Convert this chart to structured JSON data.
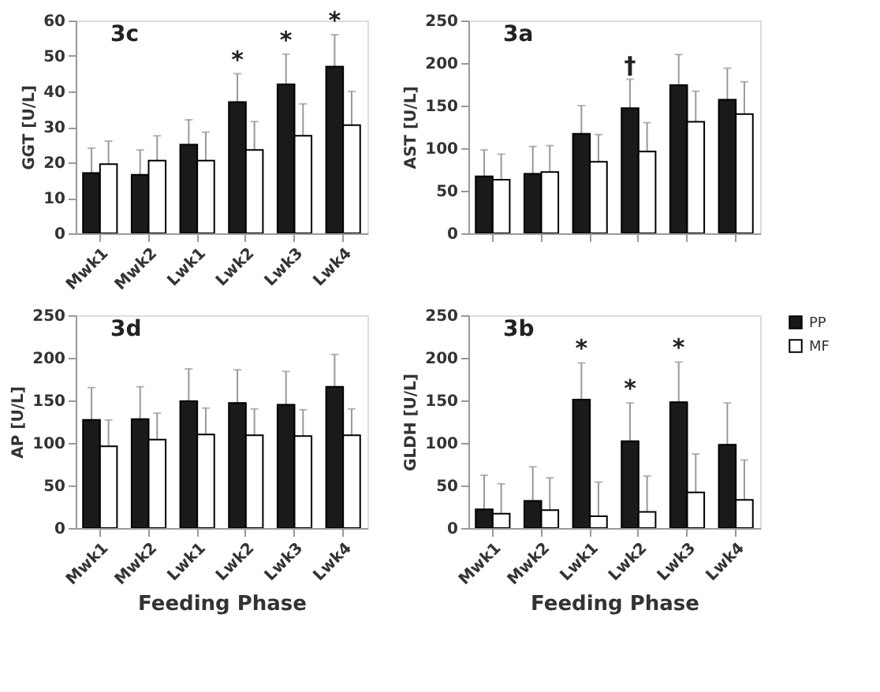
{
  "chart_data": [
    {
      "type": "bar",
      "title": "3c",
      "ylabel": "GGT [U/L]",
      "categories": [
        "Mwk1",
        "Mwk2",
        "Lwk1",
        "Lwk2",
        "Lwk3",
        "Lwk4"
      ],
      "ylim": [
        0,
        60
      ],
      "yticks": [
        0,
        10,
        20,
        30,
        40,
        50,
        60
      ],
      "grid": false,
      "series": [
        {
          "color": "#1a1a1a",
          "values": [
            17,
            16.5,
            25,
            37,
            42,
            47
          ],
          "errors": [
            [
              17,
              24
            ],
            [
              16.5,
              23.5
            ],
            [
              25,
              32
            ],
            [
              37,
              45
            ],
            [
              42,
              50.5
            ],
            [
              47,
              56
            ]
          ]
        },
        {
          "color": "#ffffff",
          "values": [
            19.5,
            20.5,
            20.5,
            23.5,
            27.5,
            30.5
          ],
          "errors": [
            [
              19.5,
              26
            ],
            [
              20.5,
              27.5
            ],
            [
              20.5,
              28.5
            ],
            [
              23.5,
              31.5
            ],
            [
              27.5,
              36.5
            ],
            [
              30.5,
              40
            ]
          ]
        }
      ],
      "annotations": [
        {
          "text": "*",
          "x": "Lwk2",
          "y": 45
        },
        {
          "text": "*",
          "x": "Lwk3",
          "y": 50.5
        },
        {
          "text": "*",
          "x": "Lwk4",
          "y": 56
        }
      ]
    },
    {
      "type": "bar",
      "title": "3a",
      "ylabel": "AST [U/L]",
      "categories": [
        "Mwk1",
        "Mwk2",
        "Lwk1",
        "Lwk2",
        "Lwk3",
        "Lwk4"
      ],
      "ylim": [
        0,
        250
      ],
      "yticks": [
        0,
        50,
        100,
        150,
        200,
        250
      ],
      "grid": false,
      "tick_labels": "y",
      "series": [
        {
          "color": "#1a1a1a",
          "values": [
            67,
            70,
            117,
            147,
            174,
            157
          ],
          "errors": [
            [
              67,
              98
            ],
            [
              70,
              102
            ],
            [
              117,
              150
            ],
            [
              147,
              181
            ],
            [
              174,
              210
            ],
            [
              157,
              194
            ]
          ]
        },
        {
          "color": "#ffffff",
          "values": [
            63,
            72,
            84,
            96,
            131,
            140
          ],
          "errors": [
            [
              63,
              93
            ],
            [
              72,
              103
            ],
            [
              84,
              116
            ],
            [
              96,
              130
            ],
            [
              131,
              167
            ],
            [
              140,
              178
            ]
          ]
        }
      ],
      "annotations": [
        {
          "text": "†",
          "x": "Lwk2",
          "y": 181
        }
      ]
    },
    {
      "type": "bar",
      "title": "3d",
      "ylabel": "AP [U/L]",
      "xlabel": "Feeding Phase",
      "categories": [
        "Mwk1",
        "Mwk2",
        "Lwk1",
        "Lwk2",
        "Lwk3",
        "Lwk4"
      ],
      "ylim": [
        0,
        250
      ],
      "yticks": [
        0,
        50,
        100,
        150,
        200,
        250
      ],
      "grid": false,
      "series": [
        {
          "color": "#1a1a1a",
          "values": [
            127,
            128,
            149,
            147,
            145,
            166
          ],
          "errors": [
            [
              127,
              165
            ],
            [
              128,
              166
            ],
            [
              149,
              187
            ],
            [
              147,
              186
            ],
            [
              145,
              184
            ],
            [
              166,
              204
            ]
          ]
        },
        {
          "color": "#ffffff",
          "values": [
            96,
            104,
            110,
            109,
            108,
            109
          ],
          "errors": [
            [
              96,
              127
            ],
            [
              104,
              135
            ],
            [
              110,
              141
            ],
            [
              109,
              140
            ],
            [
              108,
              139
            ],
            [
              109,
              140
            ]
          ]
        }
      ]
    },
    {
      "type": "bar",
      "title": "3b",
      "ylabel": "GLDH [U/L]",
      "xlabel": "Feeding Phase",
      "categories": [
        "Mwk1",
        "Mwk2",
        "Lwk1",
        "Lwk2",
        "Lwk3",
        "Lwk4"
      ],
      "ylim": [
        0,
        250
      ],
      "yticks": [
        0,
        50,
        100,
        150,
        200,
        250
      ],
      "grid": false,
      "legend": "top right",
      "series": [
        {
          "name": "PP",
          "color": "#1a1a1a",
          "values": [
            22,
            32,
            151,
            102,
            148,
            98
          ],
          "errors": [
            [
              22,
              62
            ],
            [
              32,
              72
            ],
            [
              151,
              194
            ],
            [
              102,
              147
            ],
            [
              148,
              195
            ],
            [
              98,
              147
            ]
          ]
        },
        {
          "name": "MF",
          "color": "#ffffff",
          "values": [
            17,
            21,
            14,
            19,
            42,
            33
          ],
          "errors": [
            [
              17,
              52
            ],
            [
              21,
              59
            ],
            [
              14,
              54
            ],
            [
              19,
              61
            ],
            [
              42,
              87
            ],
            [
              33,
              80
            ]
          ]
        }
      ],
      "annotations": [
        {
          "text": "*",
          "x": "Lwk1",
          "y": 194
        },
        {
          "text": "*",
          "x": "Lwk2",
          "y": 147
        },
        {
          "text": "*",
          "x": "Lwk3",
          "y": 195
        }
      ]
    }
  ]
}
